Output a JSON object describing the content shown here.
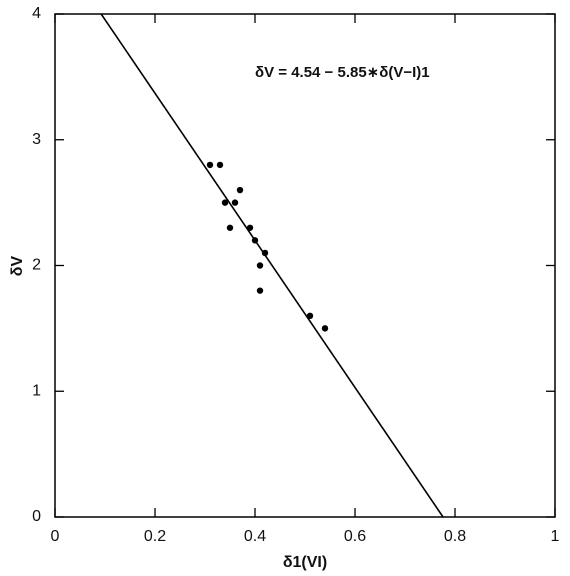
{
  "chart_data": {
    "type": "scatter",
    "x_label": "δ1(VI)",
    "y_label": "δV",
    "annotation": "δV = 4.54 − 5.85∗δ(V−I)1",
    "x": [
      0.31,
      0.33,
      0.37,
      0.34,
      0.36,
      0.35,
      0.39,
      0.4,
      0.42,
      0.41,
      0.41,
      0.51,
      0.54
    ],
    "values": [
      2.8,
      2.8,
      2.6,
      2.5,
      2.5,
      2.3,
      2.3,
      2.2,
      2.1,
      2.0,
      1.8,
      1.6,
      1.5
    ],
    "color": "#000000",
    "fit": {
      "intercept": 4.54,
      "slope": -5.85
    },
    "xlim": [
      0,
      1
    ],
    "ylim": [
      0,
      4
    ],
    "xticks": [
      0,
      0.2,
      0.4,
      0.6,
      0.8,
      1
    ],
    "yticks": [
      0,
      1,
      2,
      3,
      4
    ],
    "grid": false
  }
}
